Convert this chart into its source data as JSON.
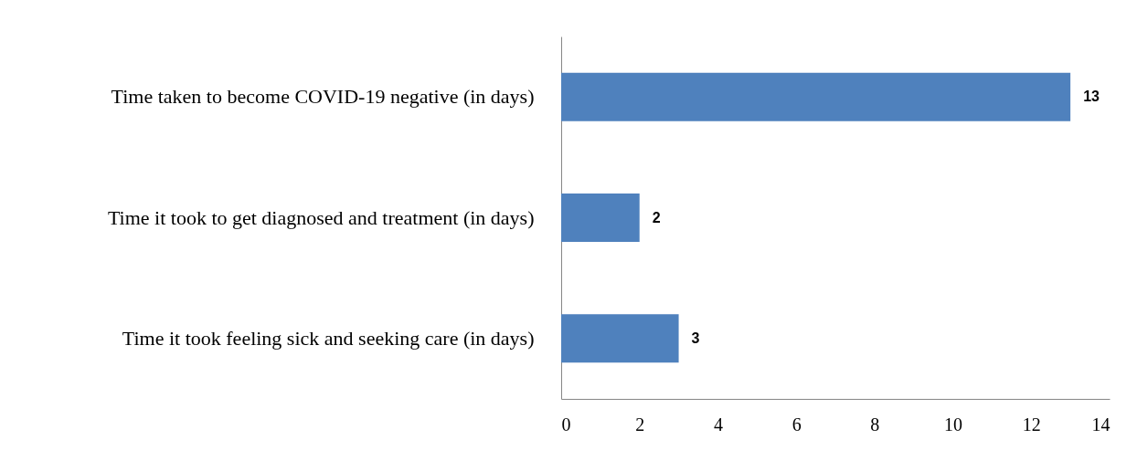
{
  "chart_data": {
    "type": "bar",
    "orientation": "horizontal",
    "categories": [
      "Time taken to become COVID-19 negative (in days)",
      "Time it took to get diagnosed and treatment (in days)",
      "Time it took feeling sick and seeking care (in days)"
    ],
    "values": [
      13,
      2,
      3
    ],
    "color": "#4f81bd",
    "xlim": [
      0,
      14
    ],
    "xticks": [
      0,
      2,
      4,
      6,
      8,
      10,
      12,
      14
    ],
    "data_labels": true
  }
}
